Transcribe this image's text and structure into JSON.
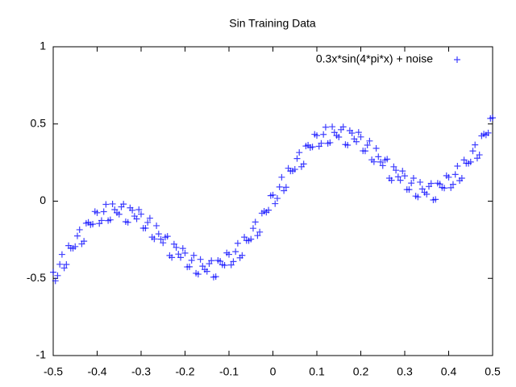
{
  "chart_data": {
    "type": "scatter",
    "title": "Sin Training Data",
    "xlim": [
      -0.5,
      0.5
    ],
    "xticks": [
      -0.5,
      -0.4,
      -0.3,
      -0.2,
      -0.1,
      0,
      0.1,
      0.2,
      0.3,
      0.4,
      0.5
    ],
    "ylim": [
      -1,
      1
    ],
    "yticks": [
      -1,
      -0.5,
      0,
      0.5,
      1
    ],
    "grid": false,
    "legend": "top-right",
    "series": [
      {
        "name": "0.3x*sin(4*pi*x) + noise",
        "color": "#0000ff",
        "x": [
          -0.5,
          -0.49,
          -0.48,
          -0.47,
          -0.46,
          -0.45,
          -0.44,
          -0.43,
          -0.42,
          -0.41,
          -0.4,
          -0.39,
          -0.38,
          -0.37,
          -0.36,
          -0.35,
          -0.34,
          -0.33,
          -0.32,
          -0.31,
          -0.3,
          -0.29,
          -0.28,
          -0.27,
          -0.26,
          -0.25,
          -0.24,
          -0.23,
          -0.22,
          -0.21,
          -0.2,
          -0.19,
          -0.18,
          -0.17,
          -0.16,
          -0.15,
          -0.14,
          -0.13,
          -0.12,
          -0.11,
          -0.1,
          -0.09,
          -0.08,
          -0.07,
          -0.06,
          -0.05,
          -0.04,
          -0.03,
          -0.02,
          -0.01,
          0,
          0.01,
          0.02,
          0.03,
          0.04,
          0.05,
          0.06,
          0.07,
          0.08,
          0.09,
          0.1,
          0.11,
          0.12,
          0.13,
          0.14,
          0.15,
          0.16,
          0.17,
          0.18,
          0.19,
          0.2,
          0.21,
          0.22,
          0.23,
          0.24,
          0.25,
          0.26,
          0.27,
          0.28,
          0.29,
          0.3,
          0.31,
          0.32,
          0.33,
          0.34,
          0.35,
          0.36,
          0.37,
          0.38,
          0.39,
          0.4,
          0.41,
          0.42,
          0.43,
          0.44,
          0.45,
          0.46,
          0.47,
          0.48,
          0.49,
          0.5,
          -0.495,
          -0.485,
          -0.475,
          -0.465,
          -0.455,
          -0.445,
          -0.435,
          -0.425,
          -0.415,
          -0.405,
          -0.395,
          -0.385,
          -0.375,
          -0.365,
          -0.355,
          -0.345,
          -0.335,
          -0.325,
          -0.315,
          -0.305,
          -0.295,
          -0.285,
          -0.275,
          -0.265,
          -0.255,
          -0.245,
          -0.235,
          -0.225,
          -0.215,
          -0.205,
          -0.195,
          -0.185,
          -0.175,
          -0.165,
          -0.155,
          -0.145,
          -0.135,
          -0.125,
          -0.115,
          -0.105,
          -0.095,
          -0.085,
          -0.075,
          -0.065,
          -0.055,
          -0.045,
          -0.035,
          -0.025,
          -0.015,
          -0.005,
          0.005,
          0.015,
          0.025,
          0.035,
          0.045,
          0.055,
          0.065,
          0.075,
          0.085,
          0.095,
          0.105,
          0.115,
          0.125,
          0.135,
          0.145,
          0.155,
          0.165,
          0.175,
          0.185,
          0.195,
          0.205,
          0.215,
          0.225,
          0.235,
          0.245,
          0.255,
          0.265,
          0.275,
          0.285,
          0.295,
          0.305,
          0.315,
          0.325,
          0.335,
          0.345,
          0.355,
          0.365,
          0.375,
          0.385,
          0.395,
          0.405,
          0.415,
          0.425,
          0.435,
          0.445,
          0.455,
          0.465,
          0.475,
          0.485,
          0.495
        ],
        "values": [
          -0.46,
          -0.482,
          -0.345,
          -0.41,
          -0.305,
          -0.294,
          -0.185,
          -0.259,
          -0.137,
          -0.149,
          -0.075,
          -0.125,
          -0.021,
          -0.121,
          -0.055,
          -0.085,
          -0.019,
          -0.137,
          -0.059,
          -0.115,
          -0.084,
          -0.175,
          -0.11,
          -0.245,
          -0.212,
          -0.27,
          -0.228,
          -0.365,
          -0.3,
          -0.365,
          -0.336,
          -0.425,
          -0.351,
          -0.473,
          -0.421,
          -0.455,
          -0.385,
          -0.489,
          -0.389,
          -0.415,
          -0.345,
          -0.391,
          -0.273,
          -0.351,
          -0.255,
          -0.246,
          -0.135,
          -0.2,
          -0.065,
          -0.058,
          0.04,
          0.018,
          0.155,
          0.09,
          0.195,
          0.206,
          0.315,
          0.241,
          0.363,
          0.351,
          0.425,
          0.375,
          0.479,
          0.379,
          0.445,
          0.415,
          0.481,
          0.363,
          0.441,
          0.385,
          0.416,
          0.325,
          0.39,
          0.255,
          0.288,
          0.23,
          0.272,
          0.135,
          0.2,
          0.135,
          0.164,
          0.075,
          0.149,
          0.027,
          0.079,
          0.045,
          0.115,
          0.011,
          0.111,
          0.085,
          0.155,
          0.109,
          0.227,
          0.149,
          0.245,
          0.254,
          0.365,
          0.3,
          0.435,
          0.442,
          0.54,
          -0.516,
          -0.409,
          -0.433,
          -0.288,
          -0.305,
          -0.225,
          -0.277,
          -0.143,
          -0.153,
          -0.067,
          -0.145,
          -0.068,
          -0.126,
          -0.018,
          -0.075,
          -0.037,
          -0.133,
          -0.043,
          -0.097,
          -0.055,
          -0.175,
          -0.138,
          -0.233,
          -0.159,
          -0.246,
          -0.234,
          -0.352,
          -0.278,
          -0.343,
          -0.306,
          -0.426,
          -0.383,
          -0.467,
          -0.377,
          -0.443,
          -0.405,
          -0.492,
          -0.384,
          -0.412,
          -0.335,
          -0.413,
          -0.327,
          -0.367,
          -0.233,
          -0.256,
          -0.176,
          -0.223,
          -0.078,
          -0.072,
          0.036,
          -0.016,
          0.092,
          0.068,
          0.213,
          0.196,
          0.276,
          0.223,
          0.357,
          0.347,
          0.433,
          0.355,
          0.432,
          0.374,
          0.482,
          0.425,
          0.463,
          0.367,
          0.457,
          0.403,
          0.446,
          0.326,
          0.363,
          0.268,
          0.342,
          0.254,
          0.266,
          0.149,
          0.223,
          0.158,
          0.195,
          0.075,
          0.117,
          0.033,
          0.123,
          0.057,
          0.095,
          0.008,
          0.116,
          0.088,
          0.165,
          0.087,
          0.173,
          0.133,
          0.267,
          0.245,
          0.325,
          0.278,
          0.423,
          0.429,
          0.536
        ]
      }
    ]
  }
}
